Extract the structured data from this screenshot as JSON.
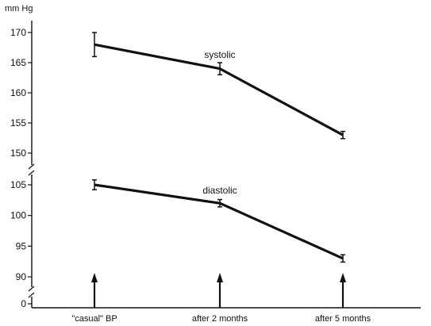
{
  "chart_data": {
    "type": "line",
    "title": "",
    "xlabel": "",
    "ylabel": "mm Hg",
    "categories": [
      "\"casual\" BP",
      "after 2 months",
      "after 5 months"
    ],
    "ylim_upper_panel": [
      145,
      172
    ],
    "ylim_lower_panel": [
      87,
      107
    ],
    "upper_ticks": [
      150,
      155,
      160,
      165,
      170
    ],
    "lower_ticks": [
      90,
      95,
      100,
      105
    ],
    "zero_tick": 0,
    "axis_break": true,
    "series": [
      {
        "name": "systolic",
        "values": [
          168,
          164,
          153
        ],
        "error": [
          2,
          1,
          0.6
        ]
      },
      {
        "name": "diastolic",
        "values": [
          105,
          102,
          93
        ],
        "error": [
          0.8,
          0.6,
          0.6
        ]
      }
    ],
    "markers": [
      "arrow",
      "arrow",
      "arrow"
    ],
    "legend": "none",
    "grid": false
  }
}
